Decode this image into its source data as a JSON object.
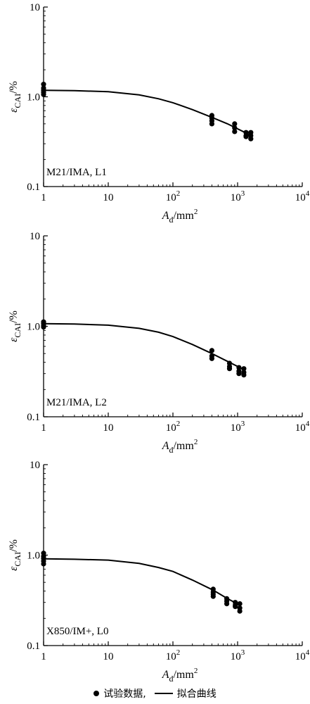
{
  "chart_data": [
    {
      "type": "scatter",
      "panel_label": "M21/IMA, L1",
      "xlabel": "A_d/mm^2",
      "ylabel": "ε_CAI/%",
      "xscale": "log",
      "yscale": "log",
      "xlim": [
        1,
        10000
      ],
      "ylim": [
        0.1,
        10
      ],
      "x_ticks": [
        "1",
        "10",
        "10^2",
        "10^3",
        "10^4"
      ],
      "y_ticks": [
        "0.1",
        "1.0",
        "10"
      ],
      "grid": false,
      "series": [
        {
          "name": "试验数据",
          "kind": "scatter",
          "x": [
            1,
            1,
            1,
            1,
            1,
            400,
            400,
            400,
            400,
            900,
            900,
            900,
            1350,
            1350,
            1350,
            1600,
            1600,
            1600
          ],
          "y": [
            1.38,
            1.25,
            1.18,
            1.12,
            1.06,
            0.62,
            0.58,
            0.54,
            0.5,
            0.5,
            0.45,
            0.41,
            0.4,
            0.37,
            0.36,
            0.4,
            0.37,
            0.34
          ]
        },
        {
          "name": "拟合曲线",
          "kind": "line",
          "x": [
            1,
            3,
            10,
            30,
            60,
            100,
            200,
            400,
            700,
            1000,
            1300,
            1600
          ],
          "y": [
            1.18,
            1.17,
            1.14,
            1.05,
            0.95,
            0.86,
            0.72,
            0.59,
            0.5,
            0.44,
            0.4,
            0.37
          ]
        }
      ]
    },
    {
      "type": "scatter",
      "panel_label": "M21/IMA, L2",
      "xlabel": "A_d/mm^2",
      "ylabel": "ε_CAI/%",
      "xscale": "log",
      "yscale": "log",
      "xlim": [
        1,
        10000
      ],
      "ylim": [
        0.1,
        10
      ],
      "x_ticks": [
        "1",
        "10",
        "10^2",
        "10^3",
        "10^4"
      ],
      "y_ticks": [
        "0.1",
        "1.0",
        "10"
      ],
      "grid": false,
      "series": [
        {
          "name": "试验数据",
          "kind": "scatter",
          "x": [
            1,
            1,
            1,
            1,
            400,
            400,
            400,
            750,
            750,
            750,
            1050,
            1050,
            1050,
            1250,
            1250,
            1250
          ],
          "y": [
            1.12,
            1.07,
            1.02,
            0.98,
            0.54,
            0.47,
            0.44,
            0.39,
            0.36,
            0.34,
            0.35,
            0.32,
            0.3,
            0.34,
            0.31,
            0.29
          ]
        },
        {
          "name": "拟合曲线",
          "kind": "line",
          "x": [
            1,
            3,
            10,
            30,
            60,
            100,
            200,
            400,
            700,
            1000,
            1250
          ],
          "y": [
            1.07,
            1.06,
            1.03,
            0.95,
            0.86,
            0.77,
            0.63,
            0.5,
            0.41,
            0.36,
            0.33
          ]
        }
      ]
    },
    {
      "type": "scatter",
      "panel_label": "X850/IM+, L0",
      "xlabel": "A_d/mm^2",
      "ylabel": "ε_CAI/%",
      "xscale": "log",
      "yscale": "log",
      "xlim": [
        1,
        10000
      ],
      "ylim": [
        0.1,
        10
      ],
      "x_ticks": [
        "1",
        "10",
        "10^2",
        "10^3",
        "10^4"
      ],
      "y_ticks": [
        "0.1",
        "1.0",
        "10"
      ],
      "grid": false,
      "series": [
        {
          "name": "试验数据",
          "kind": "scatter",
          "x": [
            1,
            1,
            1,
            1,
            1,
            420,
            420,
            420,
            420,
            680,
            680,
            680,
            920,
            920,
            920,
            1080,
            1080,
            1080
          ],
          "y": [
            1.05,
            0.97,
            0.92,
            0.86,
            0.8,
            0.42,
            0.39,
            0.37,
            0.35,
            0.33,
            0.31,
            0.29,
            0.3,
            0.28,
            0.27,
            0.29,
            0.26,
            0.24
          ]
        },
        {
          "name": "拟合曲线",
          "kind": "line",
          "x": [
            1,
            3,
            10,
            30,
            60,
            100,
            200,
            420,
            700,
            1080
          ],
          "y": [
            0.91,
            0.9,
            0.88,
            0.81,
            0.73,
            0.66,
            0.53,
            0.41,
            0.33,
            0.28
          ]
        }
      ]
    }
  ],
  "legend": {
    "scatter_label": "试验数据,",
    "line_label": "拟合曲线"
  },
  "axis_text": {
    "y_main": "ε",
    "y_sub": "CAI",
    "y_unit": "/%",
    "x_main": "A",
    "x_sub": "d",
    "x_unit": "/mm",
    "x_sup": "2"
  }
}
